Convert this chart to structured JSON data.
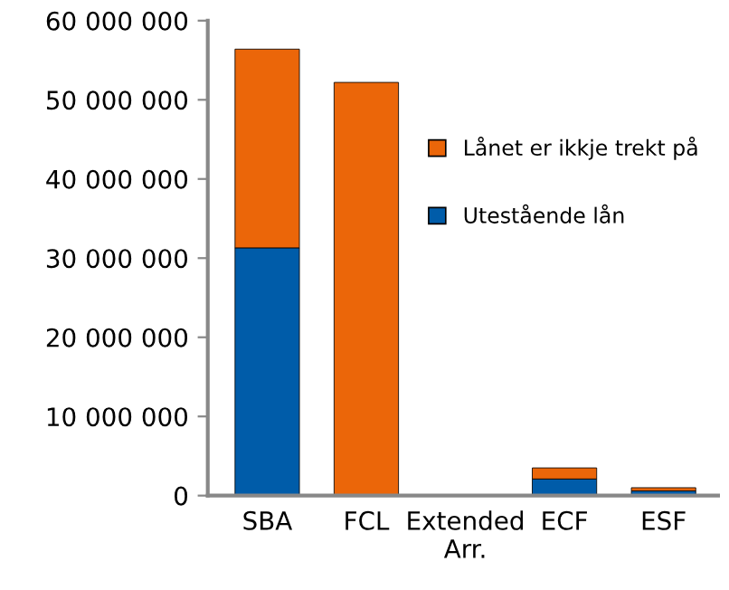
{
  "chart_data": {
    "type": "bar",
    "stacked": true,
    "categories": [
      "SBA",
      "FCL",
      "Extended\nArr.",
      "ECF",
      "ESF"
    ],
    "series": [
      {
        "name": "Utestående lån",
        "color": "#005ca9",
        "values": [
          31300000,
          0,
          0,
          2100000,
          600000
        ]
      },
      {
        "name": "Lånet er ikkje trekt på",
        "color": "#eb6609",
        "values": [
          25100000,
          52200000,
          0,
          1400000,
          400000
        ]
      }
    ],
    "ylim": [
      0,
      60000000
    ],
    "yticks": [
      {
        "value": 0,
        "label": "0"
      },
      {
        "value": 10000000,
        "label": "10 000 000"
      },
      {
        "value": 20000000,
        "label": "20 000 000"
      },
      {
        "value": 30000000,
        "label": "30 000 000"
      },
      {
        "value": 40000000,
        "label": "40 000 000"
      },
      {
        "value": 50000000,
        "label": "50 000 000"
      },
      {
        "value": 60000000,
        "label": "60 000 000"
      }
    ],
    "grid": false,
    "legend": "right"
  }
}
